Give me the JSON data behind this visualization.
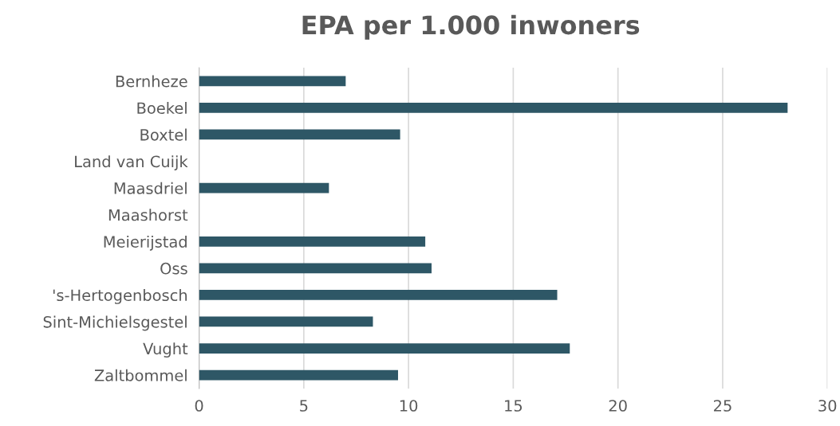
{
  "chart_data": {
    "type": "bar",
    "orientation": "horizontal",
    "title": "EPA per 1.000 inwoners",
    "categories": [
      "Bernheze",
      "Boekel",
      "Boxtel",
      "Land van Cuijk",
      "Maasdriel",
      "Maashorst",
      "Meierijstad",
      "Oss",
      "'s-Hertogenbosch",
      "Sint-Michielsgestel",
      "Vught",
      "Zaltbommel"
    ],
    "values": [
      7.0,
      28.1,
      9.6,
      null,
      6.2,
      null,
      10.8,
      11.1,
      17.1,
      8.3,
      17.7,
      9.5
    ],
    "color": "#2e5766",
    "xlim": [
      0,
      30
    ],
    "xticks": [
      0,
      5,
      10,
      15,
      20,
      25,
      30
    ],
    "grid": "x",
    "legend": false
  }
}
